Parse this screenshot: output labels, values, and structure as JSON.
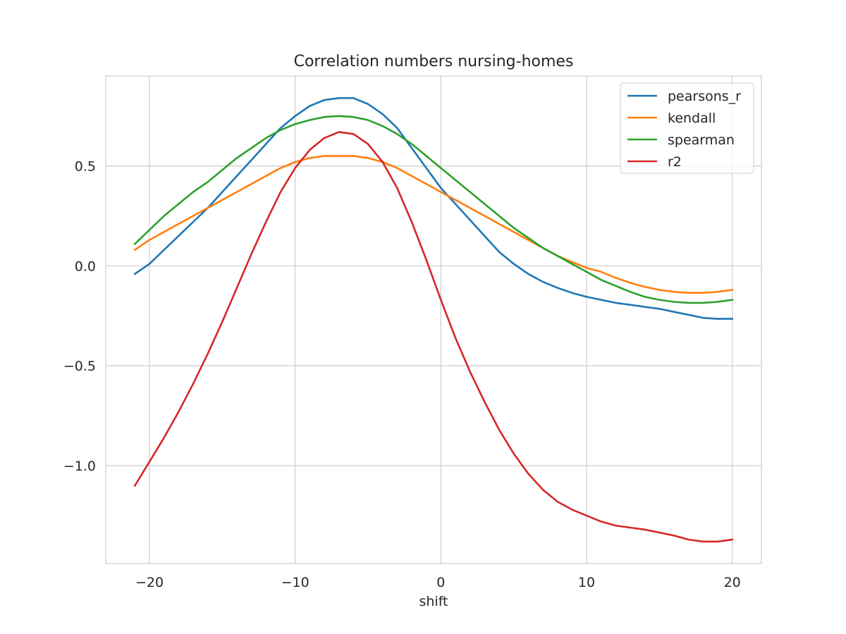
{
  "chart_data": {
    "type": "line",
    "title": "Correlation numbers nursing-homes",
    "xlabel": "shift",
    "ylabel": "",
    "xlim": [
      -23,
      22
    ],
    "ylim": [
      -1.49,
      0.95
    ],
    "xticks": [
      -20,
      -10,
      0,
      10,
      20
    ],
    "xtick_labels": [
      "−20",
      "−10",
      "0",
      "10",
      "20"
    ],
    "yticks": [
      0.5,
      0.0,
      -0.5,
      -1.0
    ],
    "ytick_labels": [
      "0.5",
      "0.0",
      "−0.5",
      "−1.0"
    ],
    "grid": true,
    "legend_position": "top-right",
    "x": [
      -21,
      -20,
      -19,
      -18,
      -17,
      -16,
      -15,
      -14,
      -13,
      -12,
      -11,
      -10,
      -9,
      -8,
      -7,
      -6,
      -5,
      -4,
      -3,
      -2,
      -1,
      0,
      1,
      2,
      3,
      4,
      5,
      6,
      7,
      8,
      9,
      10,
      11,
      12,
      13,
      14,
      15,
      16,
      17,
      18,
      19,
      20
    ],
    "series": [
      {
        "name": "pearsons_r",
        "color": "#1f77b4",
        "values": [
          -0.04,
          0.01,
          0.08,
          0.15,
          0.22,
          0.29,
          0.37,
          0.45,
          0.53,
          0.61,
          0.69,
          0.75,
          0.8,
          0.83,
          0.84,
          0.84,
          0.81,
          0.76,
          0.69,
          0.59,
          0.49,
          0.39,
          0.31,
          0.23,
          0.15,
          0.07,
          0.01,
          -0.04,
          -0.08,
          -0.11,
          -0.135,
          -0.155,
          -0.17,
          -0.185,
          -0.195,
          -0.205,
          -0.215,
          -0.23,
          -0.245,
          -0.26,
          -0.265,
          -0.265
        ]
      },
      {
        "name": "kendall",
        "color": "#ff7f0e",
        "values": [
          0.08,
          0.13,
          0.17,
          0.21,
          0.25,
          0.29,
          0.33,
          0.37,
          0.41,
          0.45,
          0.49,
          0.52,
          0.54,
          0.55,
          0.55,
          0.55,
          0.54,
          0.52,
          0.49,
          0.45,
          0.41,
          0.37,
          0.33,
          0.29,
          0.25,
          0.21,
          0.17,
          0.13,
          0.09,
          0.05,
          0.02,
          -0.01,
          -0.03,
          -0.06,
          -0.085,
          -0.105,
          -0.12,
          -0.13,
          -0.135,
          -0.135,
          -0.13,
          -0.12
        ]
      },
      {
        "name": "spearman",
        "color": "#2ca02c",
        "values": [
          0.11,
          0.18,
          0.25,
          0.31,
          0.37,
          0.42,
          0.48,
          0.54,
          0.59,
          0.64,
          0.68,
          0.71,
          0.73,
          0.745,
          0.75,
          0.745,
          0.73,
          0.7,
          0.66,
          0.61,
          0.55,
          0.49,
          0.43,
          0.37,
          0.31,
          0.25,
          0.19,
          0.14,
          0.09,
          0.05,
          0.01,
          -0.03,
          -0.07,
          -0.1,
          -0.13,
          -0.155,
          -0.17,
          -0.18,
          -0.185,
          -0.185,
          -0.18,
          -0.17
        ]
      },
      {
        "name": "r2",
        "color": "#d62728",
        "values": [
          -1.1,
          -0.98,
          -0.86,
          -0.73,
          -0.59,
          -0.44,
          -0.28,
          -0.11,
          0.06,
          0.22,
          0.37,
          0.49,
          0.58,
          0.64,
          0.67,
          0.66,
          0.61,
          0.52,
          0.39,
          0.22,
          0.03,
          -0.17,
          -0.36,
          -0.53,
          -0.68,
          -0.82,
          -0.94,
          -1.04,
          -1.12,
          -1.18,
          -1.22,
          -1.25,
          -1.28,
          -1.3,
          -1.31,
          -1.32,
          -1.335,
          -1.35,
          -1.37,
          -1.38,
          -1.38,
          -1.37
        ]
      }
    ]
  }
}
